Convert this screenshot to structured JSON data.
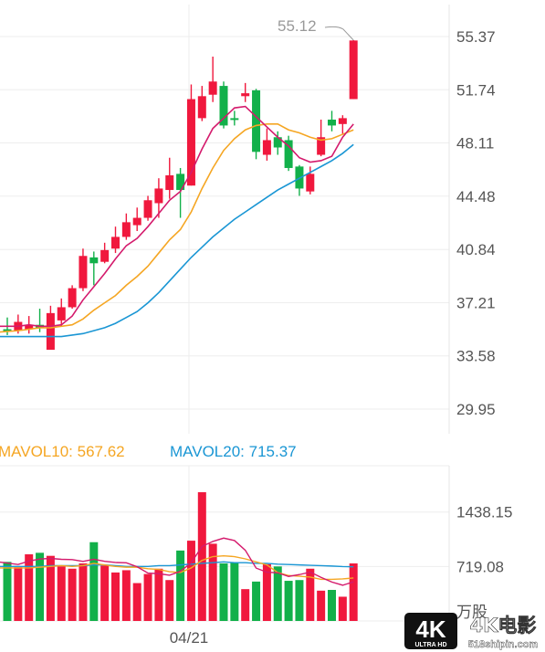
{
  "chart_data": [
    {
      "type": "candlestick",
      "title": "",
      "ylim": [
        29.95,
        57.0
      ],
      "y_ticks": [
        "55.37",
        "51.74",
        "48.11",
        "44.48",
        "40.84",
        "37.21",
        "33.58",
        "29.95"
      ],
      "x_tick_label": "04/21",
      "max_annotation": "55.12",
      "colors": {
        "up": "#f0183d",
        "down": "#12b04a",
        "ma5": "#d41a6c",
        "ma10": "#f5a623",
        "ma20": "#1a96d4"
      },
      "candles": [
        {
          "o": 35.4,
          "c": 35.4,
          "h": 36.2,
          "l": 35.0,
          "up": false
        },
        {
          "o": 35.3,
          "c": 35.9,
          "h": 36.4,
          "l": 35.1,
          "up": true
        },
        {
          "o": 35.4,
          "c": 35.7,
          "h": 36.3,
          "l": 35.1,
          "up": true
        },
        {
          "o": 35.7,
          "c": 35.5,
          "h": 36.8,
          "l": 35.2,
          "up": false
        },
        {
          "o": 34.0,
          "c": 36.5,
          "h": 37.0,
          "l": 34.0,
          "up": true
        },
        {
          "o": 36.0,
          "c": 36.9,
          "h": 37.5,
          "l": 35.6,
          "up": true
        },
        {
          "o": 36.9,
          "c": 38.2,
          "h": 38.4,
          "l": 36.8,
          "up": true
        },
        {
          "o": 38.2,
          "c": 40.4,
          "h": 40.9,
          "l": 38.0,
          "up": true
        },
        {
          "o": 40.3,
          "c": 39.9,
          "h": 40.7,
          "l": 38.4,
          "up": false
        },
        {
          "o": 40.0,
          "c": 40.8,
          "h": 41.3,
          "l": 39.9,
          "up": true
        },
        {
          "o": 40.9,
          "c": 41.7,
          "h": 42.4,
          "l": 40.6,
          "up": true
        },
        {
          "o": 41.7,
          "c": 42.7,
          "h": 43.3,
          "l": 41.5,
          "up": true
        },
        {
          "o": 42.5,
          "c": 43.0,
          "h": 43.7,
          "l": 42.1,
          "up": true
        },
        {
          "o": 43.0,
          "c": 44.2,
          "h": 44.5,
          "l": 42.8,
          "up": true
        },
        {
          "o": 44.0,
          "c": 45.0,
          "h": 45.7,
          "l": 43.0,
          "up": true
        },
        {
          "o": 44.9,
          "c": 45.9,
          "h": 47.1,
          "l": 44.3,
          "up": true
        },
        {
          "o": 46.0,
          "c": 44.9,
          "h": 46.4,
          "l": 43.0,
          "up": false
        },
        {
          "o": 45.2,
          "c": 51.1,
          "h": 52.1,
          "l": 45.2,
          "up": true
        },
        {
          "o": 49.8,
          "c": 51.3,
          "h": 52.0,
          "l": 49.6,
          "up": true
        },
        {
          "o": 51.4,
          "c": 52.3,
          "h": 54.0,
          "l": 50.9,
          "up": true
        },
        {
          "o": 52.0,
          "c": 49.3,
          "h": 52.3,
          "l": 49.1,
          "up": false
        },
        {
          "o": 49.8,
          "c": 49.8,
          "h": 50.3,
          "l": 49.3,
          "up": false
        },
        {
          "o": 51.3,
          "c": 51.5,
          "h": 52.2,
          "l": 50.9,
          "up": true
        },
        {
          "o": 51.7,
          "c": 47.5,
          "h": 51.8,
          "l": 47.0,
          "up": false
        },
        {
          "o": 47.3,
          "c": 48.3,
          "h": 49.1,
          "l": 46.9,
          "up": true
        },
        {
          "o": 48.5,
          "c": 47.8,
          "h": 48.9,
          "l": 47.3,
          "up": false
        },
        {
          "o": 48.3,
          "c": 46.4,
          "h": 48.6,
          "l": 46.2,
          "up": false
        },
        {
          "o": 46.5,
          "c": 45.0,
          "h": 46.6,
          "l": 44.5,
          "up": false
        },
        {
          "o": 44.8,
          "c": 46.0,
          "h": 46.5,
          "l": 44.6,
          "up": true
        },
        {
          "o": 47.3,
          "c": 48.5,
          "h": 49.7,
          "l": 47.2,
          "up": true
        },
        {
          "o": 49.7,
          "c": 49.3,
          "h": 50.3,
          "l": 48.9,
          "up": false
        },
        {
          "o": 49.4,
          "c": 49.8,
          "h": 50.0,
          "l": 48.7,
          "up": true
        },
        {
          "o": 51.1,
          "c": 55.1,
          "h": 55.12,
          "l": 51.1,
          "up": true
        }
      ],
      "ma5": [
        35.6,
        35.6,
        35.7,
        35.6,
        35.6,
        35.7,
        36.3,
        37.4,
        38.3,
        39.2,
        40.2,
        41.1,
        41.6,
        42.4,
        43.3,
        44.2,
        44.8,
        46.1,
        47.7,
        49.1,
        49.8,
        50.5,
        50.6,
        49.9,
        49.2,
        48.5,
        47.9,
        47.1,
        46.8,
        46.9,
        47.2,
        48.5,
        49.4
      ],
      "ma10": [
        35.2,
        35.3,
        35.4,
        35.5,
        35.5,
        35.6,
        35.7,
        36.1,
        36.7,
        37.2,
        37.7,
        38.4,
        39.0,
        39.7,
        40.6,
        41.5,
        42.2,
        43.4,
        45.0,
        46.4,
        47.6,
        48.4,
        49.0,
        49.3,
        49.4,
        49.4,
        49.0,
        48.8,
        48.5,
        48.3,
        48.4,
        48.7,
        49.0
      ],
      "ma20": [
        34.9,
        34.9,
        34.9,
        34.9,
        34.9,
        34.9,
        35.0,
        35.1,
        35.3,
        35.5,
        35.8,
        36.2,
        36.6,
        37.2,
        37.9,
        38.7,
        39.5,
        40.3,
        41.0,
        41.7,
        42.3,
        42.9,
        43.4,
        43.9,
        44.4,
        44.9,
        45.3,
        45.7,
        46.1,
        46.5,
        46.9,
        47.4,
        48.0
      ]
    },
    {
      "type": "bar",
      "title": "",
      "ylim": [
        0,
        2050
      ],
      "y_ticks": [
        "1438.15",
        "719.08",
        "万股"
      ],
      "legend": [
        {
          "label": "MAVOL10: 567.62"
        },
        {
          "label": "MAVOL20: 715.37"
        }
      ],
      "volume": [
        780,
        710,
        880,
        900,
        860,
        720,
        690,
        760,
        1040,
        730,
        640,
        670,
        500,
        620,
        690,
        540,
        930,
        1060,
        1700,
        1020,
        760,
        770,
        420,
        520,
        750,
        720,
        530,
        540,
        690,
        400,
        410,
        320,
        760
      ],
      "mavol10": [
        700,
        700,
        700,
        710,
        720,
        730,
        720,
        730,
        760,
        740,
        720,
        710,
        710,
        690,
        680,
        650,
        640,
        700,
        800,
        850,
        860,
        850,
        820,
        780,
        740,
        640,
        600,
        590,
        580,
        550,
        550,
        555,
        567.62
      ],
      "mavol20": [
        720,
        720,
        720,
        720,
        730,
        730,
        730,
        730,
        740,
        740,
        730,
        720,
        720,
        720,
        730,
        730,
        740,
        750,
        760,
        770,
        780,
        770,
        770,
        760,
        760,
        750,
        745,
        740,
        735,
        730,
        725,
        718,
        715.37
      ]
    }
  ],
  "watermark": {
    "badge_main": "4K",
    "badge_sub": "ULTRA HD",
    "brand": "4K电影",
    "site": "518shipin.com"
  }
}
